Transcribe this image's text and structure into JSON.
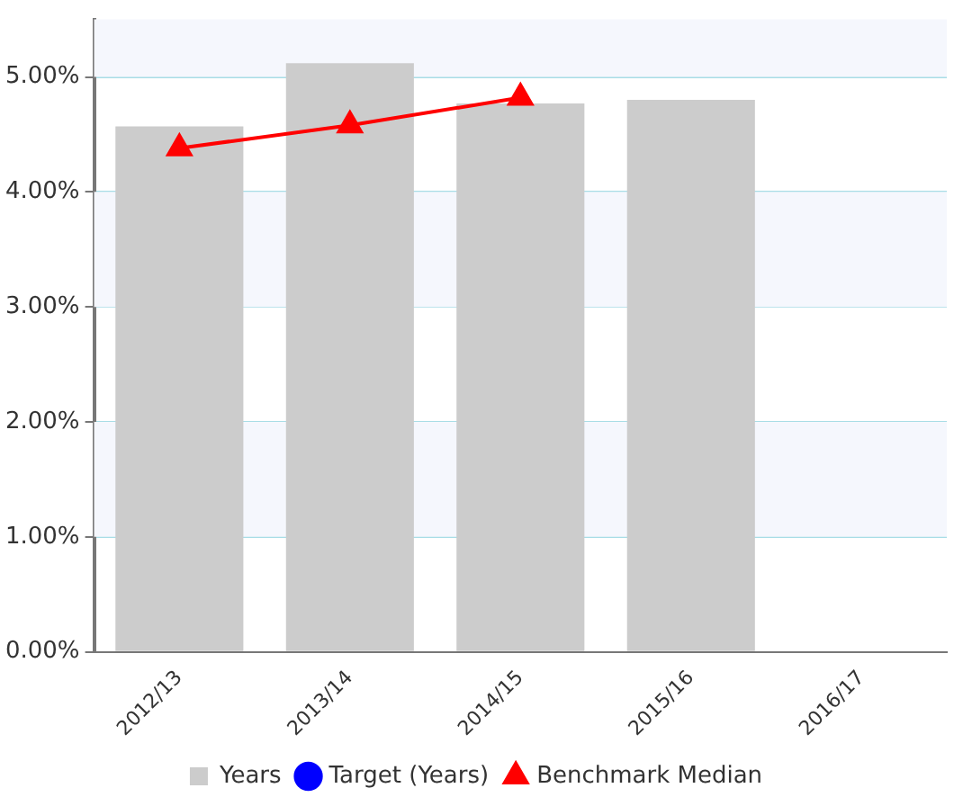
{
  "chart_data": {
    "type": "bar",
    "categories": [
      "2012/13",
      "2013/14",
      "2014/15",
      "2015/16",
      "2016/17"
    ],
    "series": [
      {
        "name": "Years",
        "color": "#cccccc",
        "values": [
          4.57,
          5.12,
          4.77,
          4.8,
          null
        ]
      },
      {
        "name": "Target (Years)",
        "type": "line",
        "color": "#0000ff",
        "marker": "circle",
        "values": [
          null,
          null,
          null,
          null,
          null
        ]
      },
      {
        "name": "Benchmark Median",
        "type": "line",
        "color": "#ff0000",
        "marker": "triangle",
        "values": [
          4.38,
          4.58,
          4.82,
          null,
          null
        ]
      }
    ],
    "ylim": [
      0,
      5.5
    ],
    "yticks": [
      {
        "value": 0,
        "label": "0.00%"
      },
      {
        "value": 1,
        "label": "1.00%"
      },
      {
        "value": 2,
        "label": "2.00%"
      },
      {
        "value": 3,
        "label": "3.00%"
      },
      {
        "value": 4,
        "label": "4.00%"
      },
      {
        "value": 5,
        "label": "5.00%"
      }
    ],
    "grid": "y",
    "legend": "bottom"
  }
}
